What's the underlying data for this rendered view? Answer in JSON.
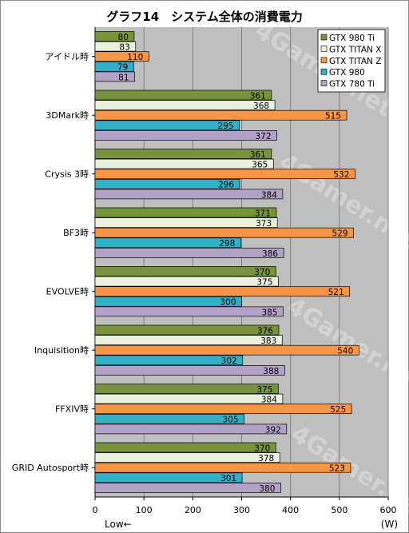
{
  "chart_data": {
    "type": "bar",
    "orientation": "horizontal",
    "title": "グラフ14　システム全体の消費電力",
    "categories": [
      "アイドル時",
      "3DMark時",
      "Crysis 3時",
      "BF3時",
      "EVOLVE時",
      "Inquisition時",
      "FFXIV時",
      "GRID Autosport時"
    ],
    "series": [
      {
        "name": "GTX 980 Ti",
        "color": "#77933c",
        "values": [
          80,
          361,
          361,
          371,
          370,
          376,
          375,
          370
        ]
      },
      {
        "name": "GTX TITAN X",
        "color": "#ebf1de",
        "values": [
          83,
          368,
          365,
          373,
          375,
          383,
          384,
          378
        ]
      },
      {
        "name": "GTX TITAN Z",
        "color": "#f79646",
        "values": [
          110,
          515,
          532,
          529,
          521,
          540,
          525,
          523
        ]
      },
      {
        "name": "GTX 980",
        "color": "#31b0c8",
        "values": [
          79,
          295,
          296,
          298,
          300,
          302,
          305,
          301
        ]
      },
      {
        "name": "GTX 780 Ti",
        "color": "#b3a2c7",
        "values": [
          81,
          372,
          384,
          386,
          385,
          388,
          392,
          380
        ]
      }
    ],
    "xlim": [
      0,
      600
    ],
    "xticks": [
      0,
      100,
      200,
      300,
      400,
      500,
      600
    ],
    "xlabel_left": "Low←",
    "xlabel_right": "(W)",
    "legend_position": "top-right",
    "grid": true,
    "plot_background": "#bfbfbf",
    "watermark": "4Gamer.net"
  }
}
